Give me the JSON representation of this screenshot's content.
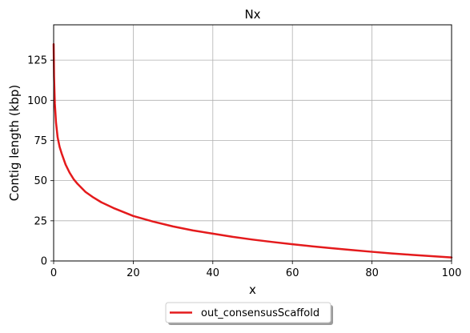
{
  "chart_data": {
    "type": "line",
    "title": "Nx",
    "xlabel": "x",
    "ylabel": "Contig length (kbp)",
    "xlim": [
      0,
      100
    ],
    "ylim": [
      0,
      147
    ],
    "xticks": [
      0,
      20,
      40,
      60,
      80,
      100
    ],
    "yticks": [
      0,
      25,
      50,
      75,
      100,
      125
    ],
    "grid": true,
    "legend_position": "bottom-center",
    "series": [
      {
        "name": "out_consensusScaffold",
        "color": "#e41a1c",
        "x": [
          0,
          0.1,
          0.3,
          0.6,
          1,
          1.5,
          2,
          3,
          4,
          5,
          6,
          8,
          10,
          12,
          15,
          20,
          25,
          30,
          35,
          40,
          45,
          50,
          55,
          60,
          65,
          70,
          75,
          80,
          85,
          90,
          95,
          100
        ],
        "y": [
          135,
          115,
          98,
          86,
          77,
          71,
          67,
          60,
          55,
          51,
          48,
          43,
          39.5,
          36.5,
          33,
          28,
          24.5,
          21.5,
          19,
          17,
          15,
          13.3,
          11.8,
          10.4,
          9.1,
          7.9,
          6.8,
          5.7,
          4.7,
          3.8,
          3.0,
          2.2
        ]
      }
    ]
  }
}
